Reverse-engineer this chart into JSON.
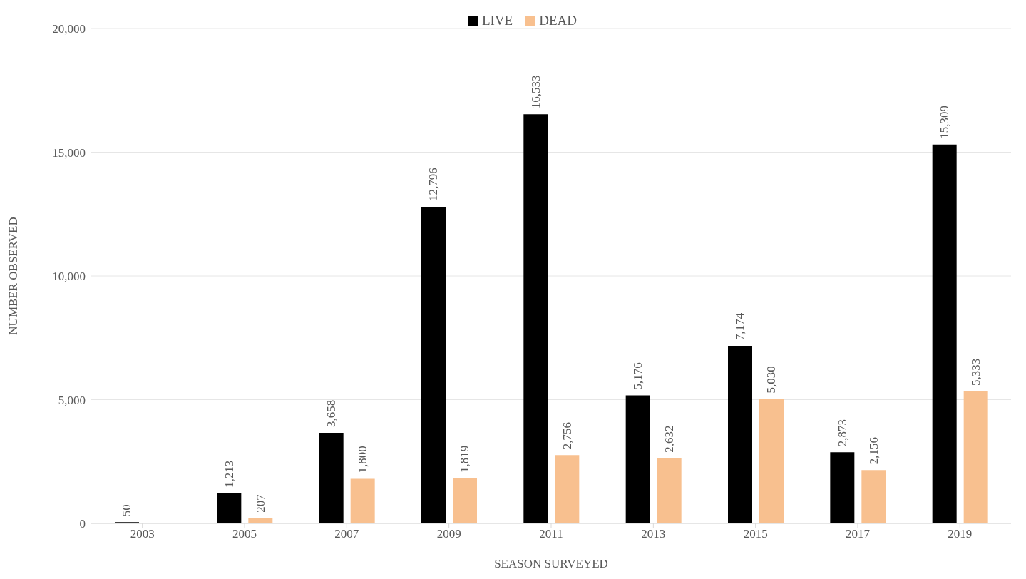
{
  "chart_data": {
    "type": "bar",
    "xlabel": "SEASON SURVEYED",
    "ylabel": "NUMBER OBSERVED",
    "categories": [
      "2003",
      "2005",
      "2007",
      "2009",
      "2011",
      "2013",
      "2015",
      "2017",
      "2019"
    ],
    "series": [
      {
        "name": "LIVE",
        "color": "#000000",
        "values": [
          50,
          1213,
          3658,
          12796,
          16533,
          5176,
          7174,
          2873,
          15309
        ],
        "value_labels": [
          "50",
          "1,213",
          "3,658",
          "12,796",
          "16,533",
          "5,176",
          "7,174",
          "2,873",
          "15,309"
        ]
      },
      {
        "name": "DEAD",
        "color": "#f8c08f",
        "values": [
          null,
          207,
          1800,
          1819,
          2756,
          2632,
          5030,
          2156,
          5333
        ],
        "value_labels": [
          null,
          "207",
          "1,800",
          "1,819",
          "2,756",
          "2,632",
          "5,030",
          "2,156",
          "5,333"
        ]
      }
    ],
    "ylim": [
      0,
      20000
    ],
    "yticks": [
      0,
      {
        "value": 5000,
        "label": "5,000"
      },
      {
        "value": 10000,
        "label": "10,000"
      },
      {
        "value": 15000,
        "label": "15,000"
      },
      {
        "value": 20000,
        "label": "20,000"
      }
    ],
    "grid": "y",
    "legend": "top"
  }
}
